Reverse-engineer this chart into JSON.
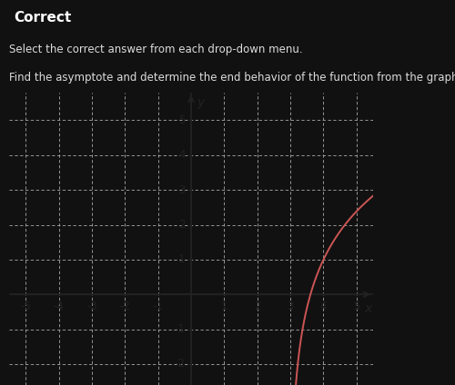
{
  "title_banner": "Correct",
  "subtitle1": "Select the correct answer from each drop-down menu.",
  "subtitle2": "Find the asymptote and determine the end behavior of the function from the graph.",
  "bg_color_dark": "#111111",
  "bg_color_banner": "#2a2a2a",
  "bg_color_plot": "#eeeeee",
  "text_color": "#dddddd",
  "banner_text_color": "#ffffff",
  "curve_color": "#cc5555",
  "asymptote_x": 3,
  "xlim": [
    -5.5,
    5.5
  ],
  "ylim": [
    -2.6,
    5.8
  ],
  "xticks": [
    -5,
    -4,
    -3,
    -2,
    -1,
    1,
    2,
    3,
    4,
    5
  ],
  "yticks": [
    -2,
    -1,
    1,
    2,
    3,
    4,
    5
  ],
  "grid_color": "#aaaaaa",
  "axis_color": "#222222",
  "tick_label_color": "#222222",
  "tick_fontsize": 8.5,
  "xlabel": "x",
  "ylabel": "y",
  "curve_scale": 2.0,
  "curve_shift": 1.0
}
